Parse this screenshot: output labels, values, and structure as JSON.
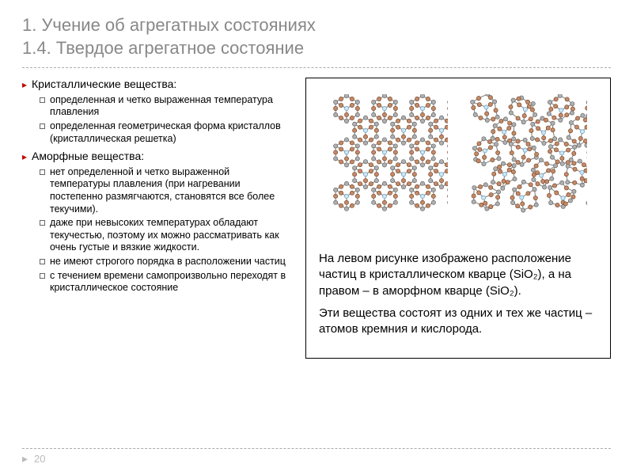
{
  "title_line1": "1. Учение об агрегатных состояниях",
  "title_line2": "1.4. Твердое агрегатное состояние",
  "left": {
    "heading1": "Кристаллические вещества:",
    "sub1": [
      "определенная и четко выраженная температура плавления",
      "определенная геометрическая форма кристаллов (кристаллическая решетка)"
    ],
    "heading2": "Аморфные вещества:",
    "sub2": [
      "нет определенной и четко выраженной температуры плавления (при нагревании постепенно размягчаются, становятся все более текучими).",
      "даже при невысоких температурах обладают текучестью, поэтому их можно рассматривать как очень густые и вязкие жидкости.",
      "не имеют строгого порядка в расположении частиц",
      "с течением времени самопроизвольно переходят в кристаллическое состояние"
    ]
  },
  "right": {
    "caption1": "На левом рисунке изображено расположение частиц в кристаллическом кварце (SiO₂), а на правом – в аморфном кварце (SiO₂).",
    "caption2": "Эти вещества состоят из одних и тех же частиц – атомов кремния и кислорода."
  },
  "page": "20",
  "diagram": {
    "node_radius": 2.6,
    "corner_fill": "#b0b0b0",
    "corner_stroke": "#666",
    "mid_fill": "#c48a6a",
    "mid_stroke": "#7a4a2a",
    "center_fill": "#cfe6f5",
    "center_stroke": "#6a9db8",
    "bond_color": "#888",
    "bond_width": 1.1
  }
}
